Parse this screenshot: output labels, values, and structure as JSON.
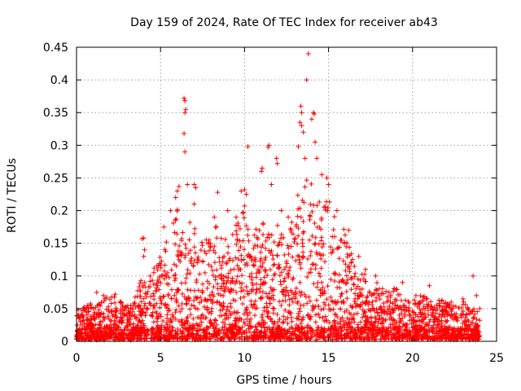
{
  "chart_data": {
    "type": "scatter",
    "title": "Day 159 of 2024, Rate Of TEC Index for receiver ab43",
    "xlabel": "GPS time / hours",
    "ylabel": "ROTI / TECUs",
    "xlim": [
      0,
      25
    ],
    "ylim": [
      0,
      0.45
    ],
    "xticks": [
      0,
      5,
      10,
      15,
      20,
      25
    ],
    "yticks": [
      0,
      0.05,
      0.1,
      0.15,
      0.2,
      0.25,
      0.3,
      0.35,
      0.4,
      0.45
    ],
    "xtick_labels": [
      "0",
      "5",
      "10",
      "15",
      "20",
      "25"
    ],
    "ytick_labels": [
      "0",
      "0.05",
      "0.1",
      "0.15",
      "0.2",
      "0.25",
      "0.3",
      "0.35",
      "0.4",
      "0.45"
    ],
    "grid": true,
    "marker": "+",
    "color": "#ff0000",
    "envelope": {
      "description_free": true,
      "x": [
        0,
        1,
        2,
        3,
        3.8,
        4.5,
        5,
        5.5,
        6,
        6.5,
        7,
        7.5,
        8,
        8.5,
        9,
        9.5,
        10,
        10.5,
        11,
        11.5,
        12,
        12.5,
        13,
        13.5,
        14,
        14.5,
        15,
        15.5,
        16,
        16.5,
        17,
        17.5,
        18,
        18.5,
        19,
        19.5,
        20,
        20.5,
        21,
        21.5,
        22,
        22.5,
        23,
        23.5,
        24
      ],
      "upper": [
        0.04,
        0.06,
        0.07,
        0.05,
        0.09,
        0.1,
        0.14,
        0.16,
        0.2,
        0.17,
        0.19,
        0.15,
        0.18,
        0.17,
        0.16,
        0.19,
        0.21,
        0.16,
        0.19,
        0.17,
        0.18,
        0.15,
        0.2,
        0.26,
        0.24,
        0.21,
        0.23,
        0.17,
        0.17,
        0.12,
        0.11,
        0.09,
        0.09,
        0.07,
        0.08,
        0.06,
        0.06,
        0.07,
        0.06,
        0.06,
        0.06,
        0.05,
        0.06,
        0.05,
        0.04
      ]
    },
    "points": [
      [
        0.1,
        0.048
      ],
      [
        0.3,
        0.042
      ],
      [
        1.2,
        0.075
      ],
      [
        1.6,
        0.07
      ],
      [
        2.1,
        0.068
      ],
      [
        2.3,
        0.072
      ],
      [
        3.9,
        0.157
      ],
      [
        4.0,
        0.158
      ],
      [
        4.05,
        0.14
      ],
      [
        4.0,
        0.13
      ],
      [
        4.6,
        0.105
      ],
      [
        5.2,
        0.175
      ],
      [
        5.6,
        0.2
      ],
      [
        5.9,
        0.22
      ],
      [
        6.0,
        0.23
      ],
      [
        6.1,
        0.237
      ],
      [
        6.4,
        0.372
      ],
      [
        6.45,
        0.368
      ],
      [
        6.5,
        0.355
      ],
      [
        6.45,
        0.35
      ],
      [
        6.4,
        0.318
      ],
      [
        6.45,
        0.29
      ],
      [
        6.6,
        0.24
      ],
      [
        7.0,
        0.24
      ],
      [
        7.1,
        0.235
      ],
      [
        7.0,
        0.21
      ],
      [
        8.2,
        0.19
      ],
      [
        8.4,
        0.228
      ],
      [
        9.0,
        0.2
      ],
      [
        9.5,
        0.19
      ],
      [
        9.8,
        0.23
      ],
      [
        10.0,
        0.232
      ],
      [
        10.1,
        0.225
      ],
      [
        10.2,
        0.298
      ],
      [
        11.0,
        0.26
      ],
      [
        11.05,
        0.265
      ],
      [
        11.4,
        0.297
      ],
      [
        11.45,
        0.3
      ],
      [
        11.6,
        0.24
      ],
      [
        11.9,
        0.28
      ],
      [
        11.95,
        0.272
      ],
      [
        12.2,
        0.2
      ],
      [
        12.6,
        0.19
      ],
      [
        13.2,
        0.298
      ],
      [
        13.35,
        0.36
      ],
      [
        13.4,
        0.35
      ],
      [
        13.3,
        0.335
      ],
      [
        13.4,
        0.33
      ],
      [
        13.5,
        0.32
      ],
      [
        13.6,
        0.28
      ],
      [
        13.8,
        0.44
      ],
      [
        13.7,
        0.4
      ],
      [
        14.1,
        0.35
      ],
      [
        14.15,
        0.348
      ],
      [
        14.0,
        0.34
      ],
      [
        14.2,
        0.305
      ],
      [
        14.3,
        0.28
      ],
      [
        14.6,
        0.255
      ],
      [
        14.9,
        0.25
      ],
      [
        15.0,
        0.24
      ],
      [
        15.5,
        0.2
      ],
      [
        16.2,
        0.17
      ],
      [
        16.8,
        0.13
      ],
      [
        17.2,
        0.11
      ],
      [
        17.8,
        0.1
      ],
      [
        18.6,
        0.075
      ],
      [
        19.4,
        0.09
      ],
      [
        20.2,
        0.07
      ],
      [
        21.0,
        0.085
      ],
      [
        22.3,
        0.06
      ],
      [
        23.0,
        0.065
      ],
      [
        23.6,
        0.1
      ],
      [
        23.8,
        0.07
      ],
      [
        24.0,
        0.05
      ]
    ]
  }
}
